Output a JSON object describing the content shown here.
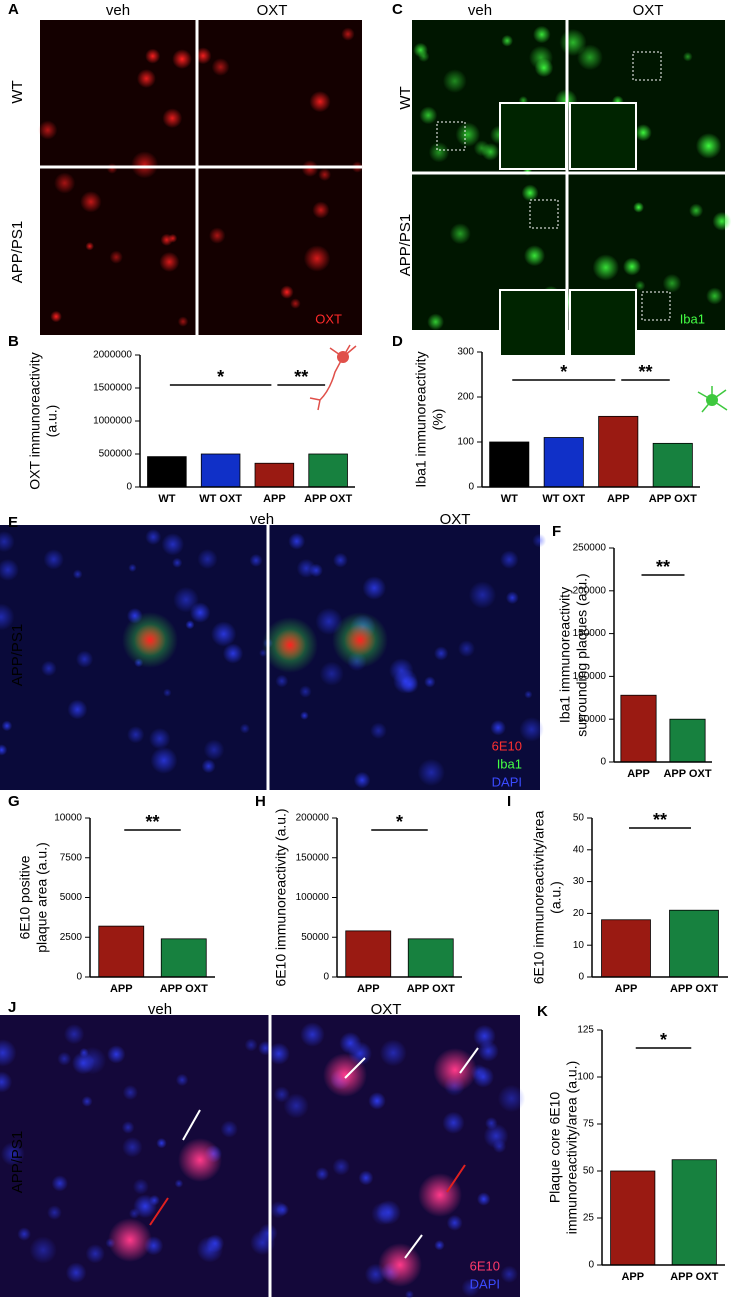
{
  "image_panels": [
    {
      "panel": "A",
      "columns": [
        "veh",
        "OXT"
      ],
      "rows": [
        "WT",
        "APP/PS1"
      ],
      "stains": [
        "OXT"
      ]
    },
    {
      "panel": "C",
      "columns": [
        "veh",
        "OXT"
      ],
      "rows": [
        "WT",
        "APP/PS1"
      ],
      "stains": [
        "Iba1"
      ]
    },
    {
      "panel": "E",
      "columns": [
        "veh",
        "OXT"
      ],
      "rows": [
        "APP/PS1"
      ],
      "stains": [
        "6E10",
        "Iba1",
        "DAPI"
      ]
    },
    {
      "panel": "J",
      "columns": [
        "veh",
        "OXT"
      ],
      "rows": [
        "APP/PS1"
      ],
      "stains": [
        "6E10",
        "DAPI"
      ]
    }
  ],
  "chart_data": [
    {
      "type": "bar",
      "panel": "B",
      "ylabel": [
        "OXT immunoreactivity",
        "(a.u.)"
      ],
      "categories": [
        "WT",
        "WT OXT",
        "APP",
        "APP OXT"
      ],
      "values": [
        460000,
        500000,
        360000,
        500000
      ],
      "colors": [
        "#000000",
        "#1030c8",
        "#9a1a12",
        "#17813f"
      ],
      "ylim": [
        0,
        2000000
      ],
      "yticks": [
        0,
        500000,
        1000000,
        1500000,
        2000000
      ],
      "significance": [
        {
          "between": [
            0,
            2
          ],
          "label": "*"
        },
        {
          "between": [
            2,
            3
          ],
          "label": "**"
        }
      ]
    },
    {
      "type": "bar",
      "panel": "D",
      "ylabel": [
        "Iba1 immunoreactivity",
        "(%)"
      ],
      "categories": [
        "WT",
        "WT OXT",
        "APP",
        "APP OXT"
      ],
      "values": [
        100,
        110,
        157,
        97
      ],
      "colors": [
        "#000000",
        "#1030c8",
        "#9a1a12",
        "#17813f"
      ],
      "ylim": [
        0,
        300
      ],
      "yticks": [
        0,
        100,
        200,
        300
      ],
      "significance": [
        {
          "between": [
            0,
            2
          ],
          "label": "*"
        },
        {
          "between": [
            2,
            3
          ],
          "label": "**"
        }
      ]
    },
    {
      "type": "bar",
      "panel": "F",
      "ylabel": [
        "Iba1 immunoreactivity",
        "surrounding  plaques (a.u.)"
      ],
      "categories": [
        "APP",
        "APP OXT"
      ],
      "values": [
        78000,
        50000
      ],
      "colors": [
        "#9a1a12",
        "#17813f"
      ],
      "ylim": [
        0,
        250000
      ],
      "yticks": [
        0,
        50000,
        100000,
        150000,
        200000,
        250000
      ],
      "significance": [
        {
          "between": [
            0,
            1
          ],
          "label": "**"
        }
      ]
    },
    {
      "type": "bar",
      "panel": "G",
      "ylabel": [
        "6E10 positive",
        "plaque area (a.u.)"
      ],
      "categories": [
        "APP",
        "APP OXT"
      ],
      "values": [
        3200,
        2400
      ],
      "colors": [
        "#9a1a12",
        "#17813f"
      ],
      "ylim": [
        0,
        10000
      ],
      "yticks": [
        0,
        2500,
        5000,
        7500,
        10000
      ],
      "significance": [
        {
          "between": [
            0,
            1
          ],
          "label": "**"
        }
      ]
    },
    {
      "type": "bar",
      "panel": "H",
      "ylabel": [
        "6E10 immunoreactivity (a.u.)"
      ],
      "categories": [
        "APP",
        "APP OXT"
      ],
      "values": [
        58000,
        48000
      ],
      "colors": [
        "#9a1a12",
        "#17813f"
      ],
      "ylim": [
        0,
        200000
      ],
      "yticks": [
        0,
        50000,
        100000,
        150000,
        200000
      ],
      "significance": [
        {
          "between": [
            0,
            1
          ],
          "label": "*"
        }
      ]
    },
    {
      "type": "bar",
      "panel": "I",
      "ylabel": [
        "6E10 immunoreactivity/area",
        "(a.u.)"
      ],
      "categories": [
        "APP",
        "APP OXT"
      ],
      "values": [
        18,
        21
      ],
      "colors": [
        "#9a1a12",
        "#17813f"
      ],
      "ylim": [
        0,
        50
      ],
      "yticks": [
        0,
        10,
        20,
        30,
        40,
        50
      ],
      "significance": [
        {
          "between": [
            0,
            1
          ],
          "label": "**"
        }
      ]
    },
    {
      "type": "bar",
      "panel": "K",
      "ylabel": [
        "Plaque core 6E10",
        "immunoreactivity/area (a.u.)"
      ],
      "categories": [
        "APP",
        "APP OXT"
      ],
      "values": [
        50,
        56
      ],
      "colors": [
        "#9a1a12",
        "#17813f"
      ],
      "ylim": [
        0,
        125
      ],
      "yticks": [
        0,
        25,
        50,
        75,
        100,
        125
      ],
      "significance": [
        {
          "between": [
            0,
            1
          ],
          "label": "*"
        }
      ]
    }
  ]
}
